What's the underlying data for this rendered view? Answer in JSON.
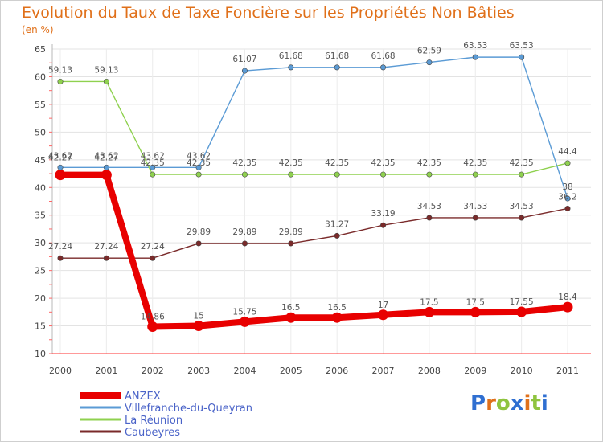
{
  "chart_data": {
    "type": "line",
    "title": "Evolution du Taux de Taxe Foncière sur les Propriétés Non Bâties",
    "ylabel": "(en %)",
    "xlabel": "",
    "x": [
      "2000",
      "2001",
      "2002",
      "2003",
      "2004",
      "2005",
      "2006",
      "2007",
      "2008",
      "2009",
      "2010",
      "2011"
    ],
    "ylim": [
      10,
      65
    ],
    "yticks": [
      "10",
      "15",
      "20",
      "25",
      "30",
      "35",
      "40",
      "45",
      "50",
      "55",
      "60",
      "65"
    ],
    "grid": true,
    "series": [
      {
        "name": "ANZEX",
        "color": "#e80000",
        "values": [
          42.27,
          42.27,
          14.86,
          15,
          15.75,
          16.5,
          16.5,
          17,
          17.5,
          17.5,
          17.55,
          18.4
        ],
        "labels": [
          "42.27",
          "42.27",
          "14.86",
          "15",
          "15.75",
          "16.5",
          "16.5",
          "17",
          "17.5",
          "17.5",
          "17.55",
          "18.4"
        ]
      },
      {
        "name": "Villefranche-du-Queyran",
        "color": "#5b9bd5",
        "values": [
          43.62,
          43.62,
          43.62,
          43.62,
          61.07,
          61.68,
          61.68,
          61.68,
          62.59,
          63.53,
          63.53,
          38
        ],
        "labels": [
          "43.62",
          "43.62",
          "43.62",
          "43.62",
          "61.07",
          "61.68",
          "61.68",
          "61.68",
          "62.59",
          "63.53",
          "63.53",
          "38"
        ]
      },
      {
        "name": "La Réunion",
        "color": "#8fd14f",
        "values": [
          59.13,
          59.13,
          42.35,
          42.35,
          42.35,
          42.35,
          42.35,
          42.35,
          42.35,
          42.35,
          42.35,
          44.4
        ],
        "labels": [
          "59.13",
          "59.13",
          "42.35",
          "42.35",
          "42.35",
          "42.35",
          "42.35",
          "42.35",
          "42.35",
          "42.35",
          "42.35",
          "44.4"
        ]
      },
      {
        "name": "Caubeyres",
        "color": "#7a2a2a",
        "values": [
          27.24,
          27.24,
          27.24,
          29.89,
          29.89,
          29.89,
          31.27,
          33.19,
          34.53,
          34.53,
          34.53,
          36.2
        ],
        "labels": [
          "27.24",
          "27.24",
          "27.24",
          "29.89",
          "29.89",
          "29.89",
          "31.27",
          "33.19",
          "34.53",
          "34.53",
          "34.53",
          "36.2"
        ]
      }
    ],
    "legend": [
      "ANZEX",
      "Villefranche-du-Queyran",
      "La Réunion",
      "Caubeyres"
    ],
    "legend_position": "bottom-left"
  },
  "logo": {
    "text": "Proxiti",
    "letters": [
      "P",
      "r",
      "o",
      "x",
      "i",
      "t",
      "i"
    ],
    "colors": [
      "#2f6fd1",
      "#e0701a",
      "#8fc43f",
      "#2f6fd1",
      "#e0701a",
      "#8fc43f",
      "#2f6fd1"
    ]
  }
}
